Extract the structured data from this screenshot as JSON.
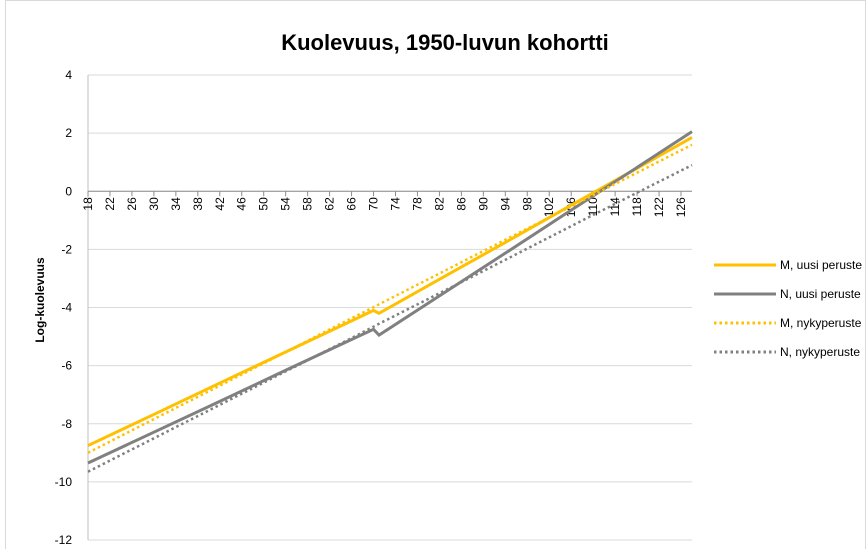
{
  "chart_data": {
    "type": "line",
    "title": "Kuolevuus, 1950-luvun kohortti",
    "y_label": "Log-kuolevuus",
    "x": [
      18,
      30,
      42,
      54,
      66,
      70,
      71,
      82,
      94,
      106,
      118,
      128
    ],
    "series": [
      {
        "name": "M, uusi peruste",
        "color": "#ffc000",
        "style": "solid",
        "values": [
          -8.75,
          -7.68,
          -6.6,
          -5.53,
          -4.46,
          -4.1,
          -4.2,
          -3.03,
          -1.76,
          -0.48,
          0.79,
          1.85
        ]
      },
      {
        "name": "N, uusi peruste",
        "color": "#808080",
        "style": "solid",
        "values": [
          -9.35,
          -8.29,
          -7.23,
          -6.16,
          -5.1,
          -4.75,
          -4.95,
          -3.6,
          -2.13,
          -0.65,
          0.82,
          2.05
        ]
      },
      {
        "name": "M, nykyperuste",
        "color": "#ffc000",
        "style": "dotted",
        "values": [
          -9.0,
          -7.84,
          -6.69,
          -5.53,
          -4.37,
          -3.99,
          -3.89,
          -2.83,
          -1.67,
          -0.52,
          0.64,
          1.6
        ]
      },
      {
        "name": "N, nykyperuste",
        "color": "#808080",
        "style": "dotted",
        "values": [
          -9.65,
          -8.5,
          -7.35,
          -6.2,
          -5.05,
          -4.66,
          -4.56,
          -3.51,
          -2.36,
          -1.2,
          -0.05,
          0.9
        ]
      }
    ],
    "xlim": [
      18,
      128
    ],
    "xticks": [
      18,
      22,
      26,
      30,
      34,
      38,
      42,
      46,
      50,
      54,
      58,
      62,
      66,
      70,
      74,
      78,
      82,
      86,
      90,
      94,
      98,
      102,
      106,
      110,
      114,
      118,
      122,
      126
    ],
    "ylim": [
      -12,
      4
    ],
    "yticks": [
      -12,
      -10,
      -8,
      -6,
      -4,
      -2,
      0,
      2,
      4
    ],
    "grid": true,
    "legend": "right"
  }
}
